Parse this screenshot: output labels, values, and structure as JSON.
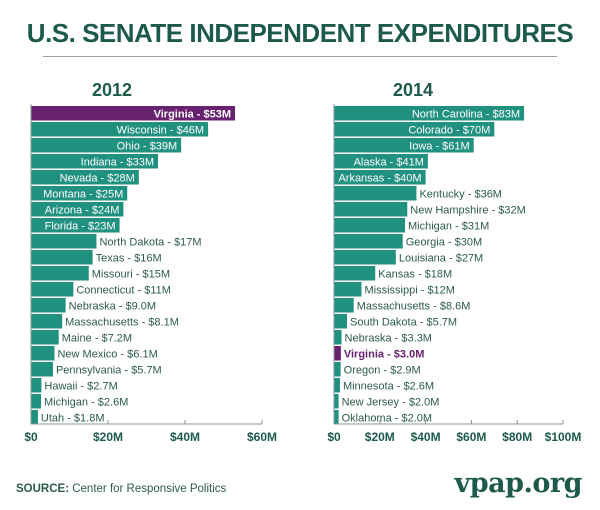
{
  "title": "U.S. SENATE INDEPENDENT EXPENDITURES",
  "source_label": "SOURCE:",
  "source_text": "Center for Responsive Politics",
  "logo": "vpap.org",
  "colors": {
    "bar": "#21917f",
    "highlight": "#68226f",
    "text": "#2b5a50",
    "title": "#1d5a4c"
  },
  "chart_data": [
    {
      "type": "bar",
      "orientation": "horizontal",
      "title": "2012",
      "highlight": "Virginia",
      "categories": [
        "Virginia",
        "Wisconsin",
        "Ohio",
        "Indiana",
        "Nevada",
        "Montana",
        "Arizona",
        "Florida",
        "North Dakota",
        "Texas",
        "Missouri",
        "Connecticut",
        "Nebraska",
        "Massachusetts",
        "Maine",
        "New Mexico",
        "Pennsylvania",
        "Hawaii",
        "Michigan",
        "Utah"
      ],
      "values": [
        53,
        46,
        39,
        33,
        28,
        25,
        24,
        23,
        17,
        16,
        15,
        11,
        9.0,
        8.1,
        7.2,
        6.1,
        5.7,
        2.7,
        2.6,
        1.8
      ],
      "labels": [
        "Virginia - $53M",
        "Wisconsin - $46M",
        "Ohio - $39M",
        "Indiana - $33M",
        "Nevada - $28M",
        "Montana - $25M",
        "Arizona - $24M",
        "Florida - $23M",
        "North Dakota - $17M",
        "Texas - $16M",
        "Missouri - $15M",
        "Connecticut - $11M",
        "Nebraska - $9.0M",
        "Massachusetts - $8.1M",
        "Maine - $7.2M",
        "New Mexico - $6.1M",
        "Pennsylvania - $5.7M",
        "Hawaii - $2.7M",
        "Michigan - $2.6M",
        "Utah - $1.8M"
      ],
      "xlim": [
        0,
        60
      ],
      "ticks": [
        0,
        20,
        40,
        60
      ],
      "tick_labels": [
        "$0",
        "$20M",
        "$40M",
        "$60M"
      ]
    },
    {
      "type": "bar",
      "orientation": "horizontal",
      "title": "2014",
      "highlight": "Virginia",
      "categories": [
        "North Carolina",
        "Colorado",
        "Iowa",
        "Alaska",
        "Arkansas",
        "Kentucky",
        "New Hampshire",
        "Michigan",
        "Georgia",
        "Louisiana",
        "Kansas",
        "Mississippi",
        "Massachusetts",
        "South Dakota",
        "Nebraska",
        "Virginia",
        "Oregon",
        "Minnesota",
        "New Jersey",
        "Oklahoma"
      ],
      "values": [
        83,
        70,
        61,
        41,
        40,
        36,
        32,
        31,
        30,
        27,
        18,
        12,
        8.6,
        5.7,
        3.3,
        3.0,
        2.9,
        2.6,
        2.0,
        2.0
      ],
      "labels": [
        "North Carolina - $83M",
        "Colorado - $70M",
        "Iowa - $61M",
        "Alaska - $41M",
        "Arkansas - $40M",
        "Kentucky - $36M",
        "New Hampshire - $32M",
        "Michigan - $31M",
        "Georgia - $30M",
        "Louisiana - $27M",
        "Kansas - $18M",
        "Mississippi - $12M",
        "Massachusetts - $8.6M",
        "South Dakota - $5.7M",
        "Nebraska - $3.3M",
        "Virginia - $3.0M",
        "Oregon - $2.9M",
        "Minnesota - $2.6M",
        "New Jersey - $2.0M",
        "Oklahoma - $2.0M"
      ],
      "xlim": [
        0,
        100
      ],
      "ticks": [
        0,
        20,
        40,
        60,
        80,
        100
      ],
      "tick_labels": [
        "$0",
        "$20M",
        "$40M",
        "$60M",
        "$80M",
        "$100M"
      ]
    }
  ]
}
